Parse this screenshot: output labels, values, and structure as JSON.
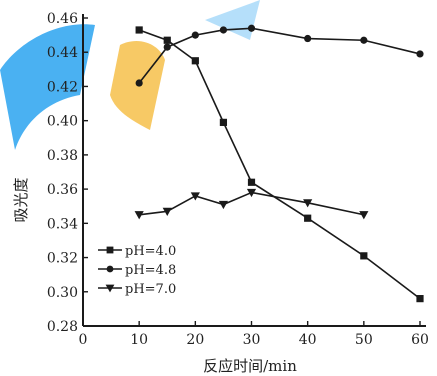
{
  "chart_data": {
    "type": "line",
    "title": "",
    "xlabel": "反应时间/min",
    "ylabel": "吸光度",
    "xlim": [
      0,
      60
    ],
    "ylim": [
      0.28,
      0.46
    ],
    "xticks": [
      "0",
      "10",
      "20",
      "30",
      "40",
      "50",
      "60"
    ],
    "yticks": [
      "0.28",
      "0.30",
      "0.32",
      "0.34",
      "0.36",
      "0.38",
      "0.40",
      "0.42",
      "0.44",
      "0.46"
    ],
    "grid": false,
    "legend_position": "bottom-left",
    "series": [
      {
        "name": "pH=4.0",
        "marker": "square",
        "x": [
          10,
          15,
          20,
          25,
          30,
          40,
          50,
          60
        ],
        "y": [
          0.453,
          0.447,
          0.435,
          0.399,
          0.364,
          0.343,
          0.321,
          0.296
        ]
      },
      {
        "name": "pH=4.8",
        "marker": "circle",
        "x": [
          10,
          15,
          20,
          25,
          30,
          40,
          50,
          60
        ],
        "y": [
          0.422,
          0.443,
          0.45,
          0.453,
          0.454,
          0.448,
          0.447,
          0.439
        ]
      },
      {
        "name": "pH=7.0",
        "marker": "triangle-down",
        "x": [
          10,
          15,
          20,
          25,
          30,
          40,
          50
        ],
        "y": [
          0.345,
          0.347,
          0.356,
          0.351,
          0.358,
          0.352,
          0.345
        ]
      }
    ]
  },
  "colors": {
    "line": "#1a1a1a",
    "watermark_blue": "#2aa3f0",
    "watermark_orange": "#f6c04a"
  }
}
